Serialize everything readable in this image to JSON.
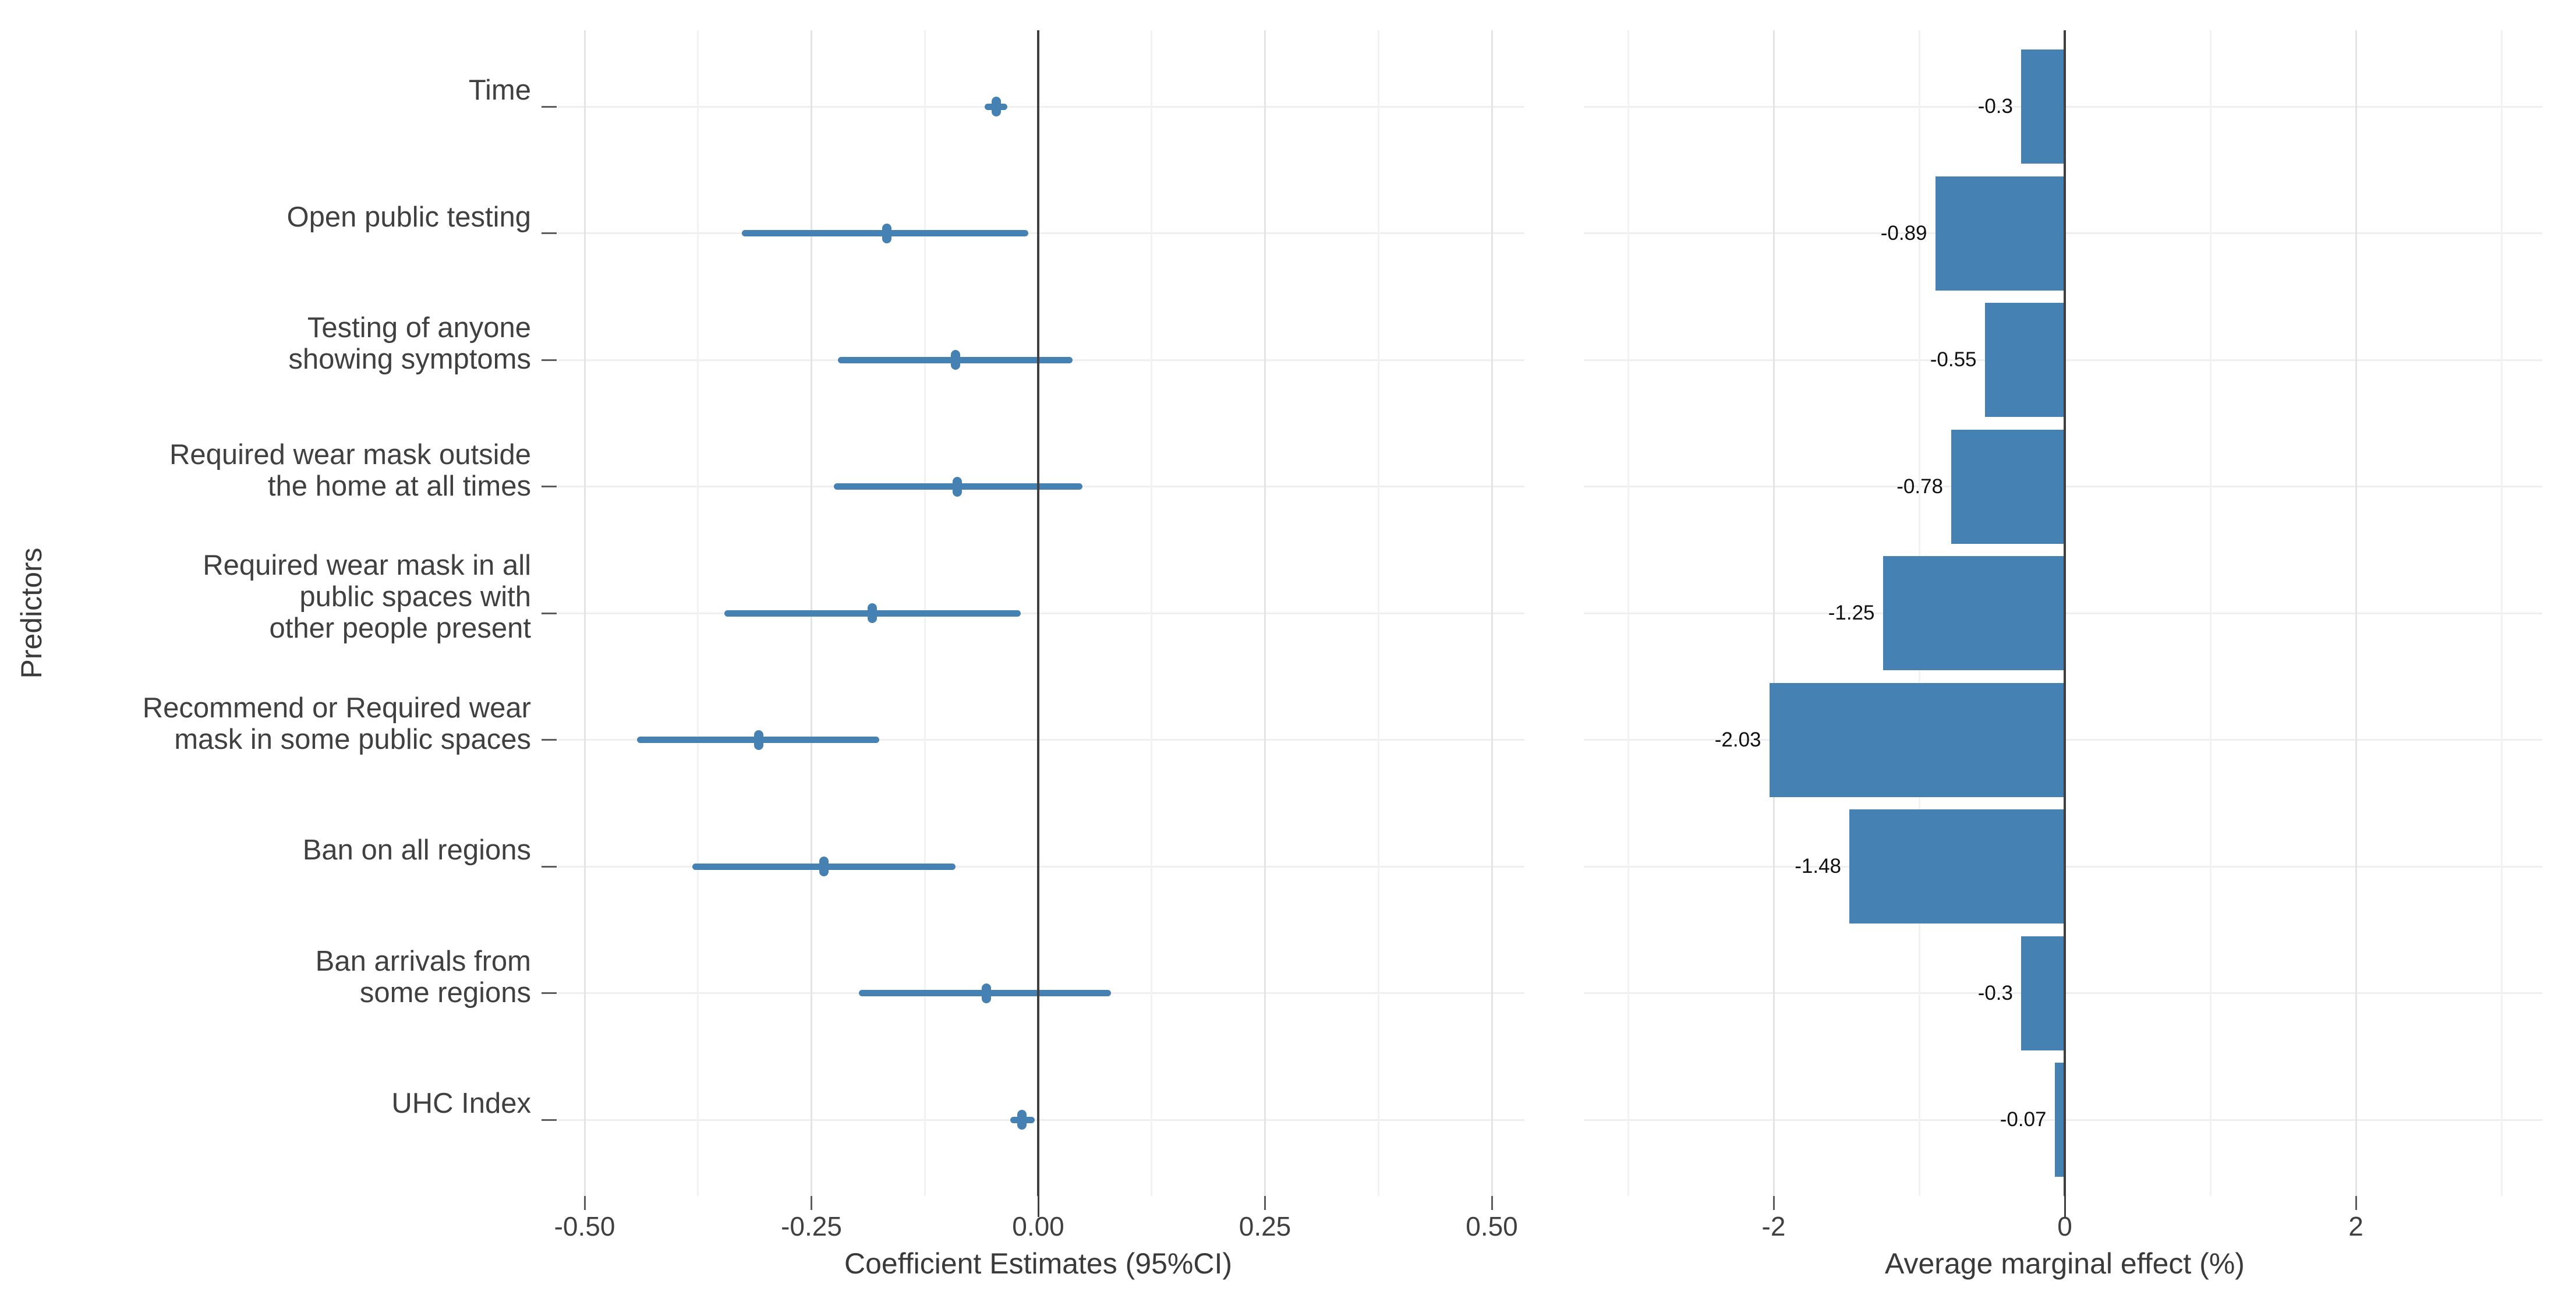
{
  "figure": {
    "background": "#ffffff",
    "accent_color": "#4681b3",
    "zero_line_color": "#3f3f3f",
    "gridline_color": "#e4e4e4",
    "text_color": "#404040",
    "value_label_color": "#101010",
    "y_axis_title": "Predictors",
    "categories": [
      {
        "lines": [
          "Time"
        ]
      },
      {
        "lines": [
          "Open public testing"
        ]
      },
      {
        "lines": [
          "Testing of anyone",
          "showing symptoms"
        ]
      },
      {
        "lines": [
          "Required wear mask outside",
          "the home at all times"
        ]
      },
      {
        "lines": [
          "Required wear mask in all",
          "public spaces with",
          "other people present"
        ]
      },
      {
        "lines": [
          "Recommend or Required wear",
          "mask in some public spaces"
        ]
      },
      {
        "lines": [
          "Ban on all regions"
        ]
      },
      {
        "lines": [
          "Ban arrivals from",
          "some regions"
        ]
      },
      {
        "lines": [
          "UHC Index"
        ]
      }
    ]
  },
  "chart_data": [
    {
      "type": "scatter",
      "subtype": "dot-whisker-95ci",
      "title": "",
      "xlabel": "Coefficient Estimates (95%CI)",
      "ylabel": "Predictors",
      "xlim": [
        -0.53,
        0.54
      ],
      "grid": true,
      "legend": false,
      "x_ticks": [
        {
          "value": -0.5,
          "label": "-0.50"
        },
        {
          "value": -0.25,
          "label": "-0.25"
        },
        {
          "value": 0.0,
          "label": "0.00"
        },
        {
          "value": 0.25,
          "label": "0.25"
        },
        {
          "value": 0.5,
          "label": "0.50"
        }
      ],
      "minor_gridlines": [
        -0.375,
        -0.125,
        0.125,
        0.375
      ],
      "categories": [
        "Time",
        "Open public testing",
        "Testing of anyone showing symptoms",
        "Required wear mask outside the home at all times",
        "Required wear mask in all public spaces with other people present",
        "Recommend or Required wear mask in some public spaces",
        "Ban on all regions",
        "Ban arrivals from some regions",
        "UHC Index"
      ],
      "points": [
        {
          "category": "Time",
          "estimate": -0.046,
          "ci_low": -0.059,
          "ci_high": -0.034
        },
        {
          "category": "Open public testing",
          "estimate": -0.167,
          "ci_low": -0.327,
          "ci_high": -0.011
        },
        {
          "category": "Testing of anyone showing symptoms",
          "estimate": -0.091,
          "ci_low": -0.221,
          "ci_high": 0.038
        },
        {
          "category": "Required wear mask outside the home at all times",
          "estimate": -0.089,
          "ci_low": -0.225,
          "ci_high": 0.049
        },
        {
          "category": "Required wear mask in all public spaces with other people present",
          "estimate": -0.183,
          "ci_low": -0.346,
          "ci_high": -0.019
        },
        {
          "category": "Recommend or Required wear mask in some public spaces",
          "estimate": -0.308,
          "ci_low": -0.442,
          "ci_high": -0.175
        },
        {
          "category": "Ban on all regions",
          "estimate": -0.236,
          "ci_low": -0.381,
          "ci_high": -0.091
        },
        {
          "category": "Ban arrivals from some regions",
          "estimate": -0.057,
          "ci_low": -0.198,
          "ci_high": 0.08
        },
        {
          "category": "UHC Index",
          "estimate": -0.018,
          "ci_low": -0.031,
          "ci_high": -0.004
        }
      ]
    },
    {
      "type": "bar",
      "orientation": "horizontal",
      "title": "",
      "xlabel": "Average marginal effect (%)",
      "xlim": [
        -3.3,
        3.28
      ],
      "grid": true,
      "legend": false,
      "x_ticks": [
        {
          "value": -2,
          "label": "-2"
        },
        {
          "value": 0,
          "label": "0"
        },
        {
          "value": 2,
          "label": "2"
        }
      ],
      "minor_gridlines": [
        -3,
        -1,
        1,
        3
      ],
      "categories": [
        "Time",
        "Open public testing",
        "Testing of anyone showing symptoms",
        "Required wear mask outside the home at all times",
        "Required wear mask in all public spaces with other people present",
        "Recommend or Required wear mask in some public spaces",
        "Ban on all regions",
        "Ban arrivals from some regions",
        "UHC Index"
      ],
      "values": [
        -0.3,
        -0.89,
        -0.55,
        -0.78,
        -1.25,
        -2.03,
        -1.48,
        -0.3,
        -0.07
      ],
      "bar_labels": [
        "-0.3",
        "-0.89",
        "-0.55",
        "-0.78",
        "-1.25",
        "-2.03",
        "-1.48",
        "-0.3",
        "-0.07"
      ]
    }
  ]
}
